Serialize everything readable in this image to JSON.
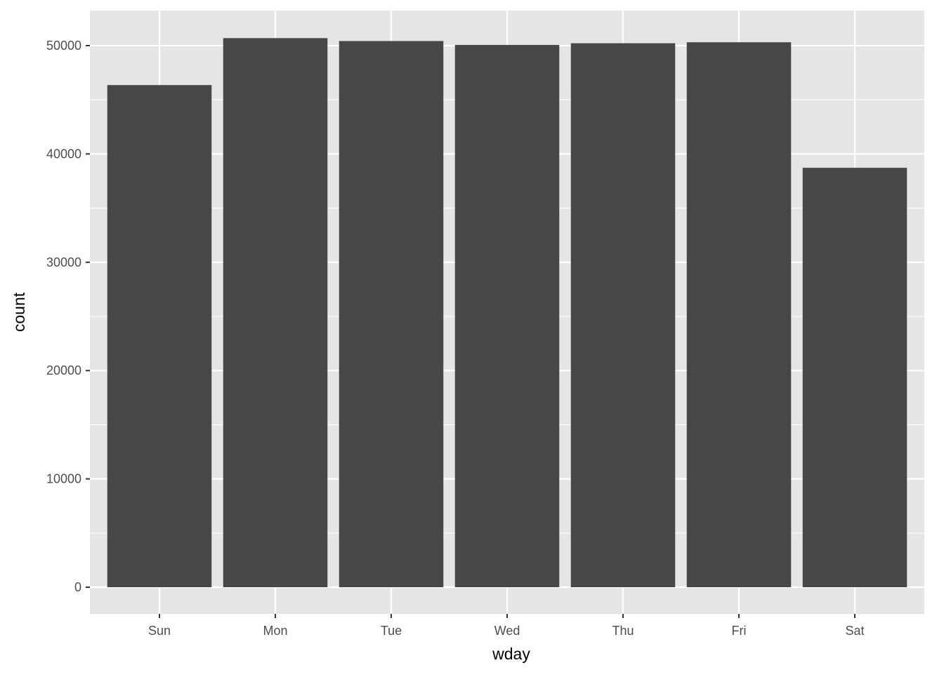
{
  "chart_data": {
    "type": "bar",
    "title": "",
    "xlabel": "wday",
    "ylabel": "count",
    "categories": [
      "Sun",
      "Mon",
      "Tue",
      "Wed",
      "Thu",
      "Fri",
      "Sat"
    ],
    "values": [
      46357,
      50690,
      50422,
      50060,
      50219,
      50308,
      38720
    ],
    "yticks": [
      0,
      10000,
      20000,
      30000,
      40000,
      50000
    ],
    "ylim": [
      -2461,
      53238
    ],
    "grid": true,
    "legend": "none",
    "colors": {
      "bar": "#474747",
      "panel": "#e5e5e5",
      "grid": "#ffffff",
      "tick_text": "#4d4d4d"
    }
  }
}
